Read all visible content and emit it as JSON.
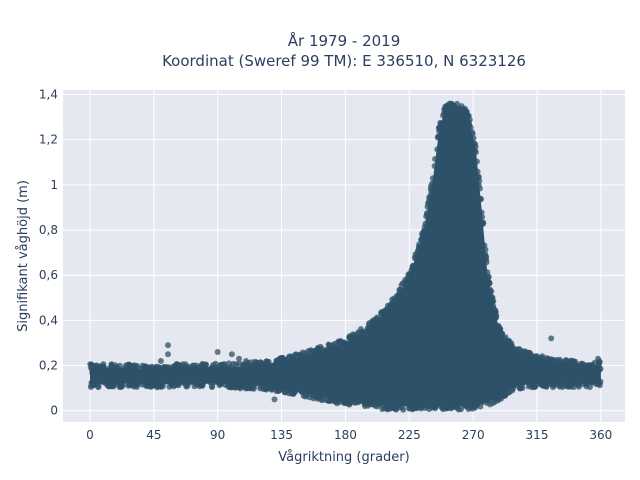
{
  "chart_data": {
    "type": "scatter",
    "title": "År 1979 - 2019",
    "subtitle": "Koordinat (Sweref 99 TM): E 336510, N 6323126",
    "xlabel": "Vågriktning (grader)",
    "ylabel": "Signifikant våghöjd (m)",
    "xlim": [
      -19,
      377
    ],
    "ylim": [
      -0.05,
      1.42
    ],
    "x_ticks": [
      0,
      45,
      90,
      135,
      180,
      225,
      270,
      315,
      360
    ],
    "x_tick_labels": [
      "0",
      "45",
      "90",
      "135",
      "180",
      "225",
      "270",
      "315",
      "360"
    ],
    "y_ticks": [
      0,
      0.2,
      0.4,
      0.6,
      0.8,
      1,
      1.2,
      1.4
    ],
    "y_tick_labels": [
      "0",
      "0,2",
      "0,4",
      "0,6",
      "0,8",
      "1",
      "1,2",
      "1,4"
    ],
    "grid": true,
    "legend": "none",
    "colors": {
      "marker": "#2d5168",
      "plot_bg": "#e5e8f0",
      "grid": "#ffffff",
      "text": "#2a3f5f"
    },
    "envelope": {
      "x": [
        0,
        20,
        45,
        60,
        90,
        120,
        135,
        150,
        165,
        180,
        195,
        210,
        225,
        235,
        242,
        246,
        250,
        255,
        260,
        265,
        268,
        272,
        276,
        280,
        285,
        290,
        300,
        315,
        330,
        345,
        360
      ],
      "ymax": [
        0.2,
        0.2,
        0.19,
        0.2,
        0.2,
        0.21,
        0.23,
        0.25,
        0.28,
        0.31,
        0.37,
        0.46,
        0.6,
        0.8,
        1.05,
        1.25,
        1.34,
        1.36,
        1.35,
        1.33,
        1.28,
        1.16,
        0.9,
        0.62,
        0.45,
        0.34,
        0.27,
        0.24,
        0.22,
        0.21,
        0.21
      ],
      "ymin": [
        0.11,
        0.11,
        0.11,
        0.11,
        0.11,
        0.1,
        0.09,
        0.07,
        0.05,
        0.03,
        0.02,
        0.01,
        0.01,
        0.01,
        0.01,
        0.01,
        0.01,
        0.01,
        0.01,
        0.01,
        0.01,
        0.02,
        0.02,
        0.03,
        0.04,
        0.06,
        0.1,
        0.11,
        0.11,
        0.11,
        0.11
      ]
    },
    "outliers": {
      "x": [
        55,
        55,
        50,
        90,
        100,
        105,
        110,
        125,
        145,
        160,
        175,
        180,
        325,
        358,
        130,
        200
      ],
      "y": [
        0.29,
        0.25,
        0.22,
        0.26,
        0.25,
        0.23,
        0.22,
        0.21,
        0.24,
        0.27,
        0.3,
        0.29,
        0.32,
        0.23,
        0.05,
        0.35
      ]
    }
  }
}
